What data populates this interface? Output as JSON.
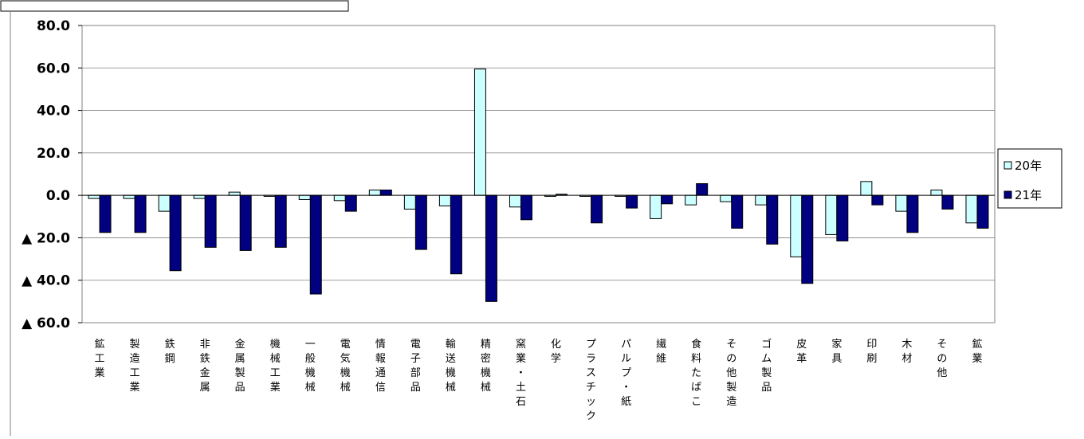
{
  "chart_data": {
    "type": "bar",
    "categories": [
      "鉱工業",
      "製造工業",
      "鉄鋼",
      "非鉄金属",
      "金属製品",
      "機械工業",
      "一般機械",
      "電気機械",
      "情報通信",
      "電子部品",
      "輸送機械",
      "精密機械",
      "窯業・土石",
      "化学",
      "プラスチック",
      "パルプ・紙",
      "繊維",
      "食料たばこ",
      "その他製造",
      "ゴム製品",
      "皮革",
      "家具",
      "印刷",
      "木材",
      "その他",
      "鉱業"
    ],
    "series": [
      {
        "name": "20年",
        "color": "#ccffff",
        "values": [
          -1.5,
          -1.5,
          -7.5,
          -1.5,
          1.5,
          -0.5,
          -2.0,
          -2.5,
          2.5,
          -6.5,
          -5.0,
          59.5,
          -5.5,
          -0.5,
          -0.5,
          -0.5,
          -11.0,
          -4.5,
          -3.0,
          -4.5,
          -29.0,
          -18.5,
          6.5,
          -7.5,
          2.5,
          -13.0
        ]
      },
      {
        "name": "21年",
        "color": "#000080",
        "values": [
          -17.5,
          -17.5,
          -35.5,
          -24.5,
          -26.0,
          -24.5,
          -46.5,
          -7.5,
          2.5,
          -25.5,
          -37.0,
          -50.0,
          -11.5,
          0.5,
          -13.0,
          -6.0,
          -4.0,
          5.5,
          -15.5,
          -23.0,
          -41.5,
          -21.5,
          -4.5,
          -17.5,
          -6.5,
          -15.5
        ]
      }
    ],
    "ylim": [
      -60,
      80
    ],
    "yticks": [
      80,
      60,
      40,
      20,
      0,
      -20,
      -40,
      -60
    ],
    "ytick_labels": [
      "80.0",
      "60.0",
      "40.0",
      "20.0",
      "0.0",
      "▲ 20.0",
      "▲ 40.0",
      "▲ 60.0"
    ],
    "grid": true,
    "legend": "right"
  }
}
